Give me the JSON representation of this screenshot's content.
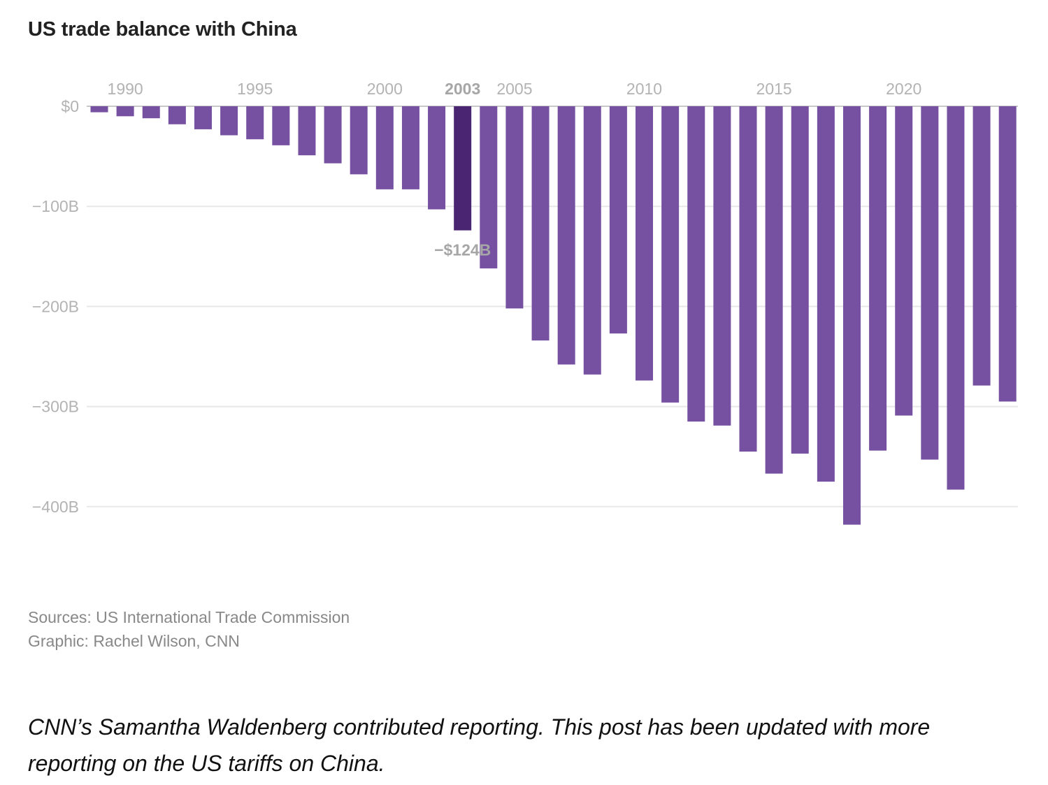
{
  "chart_data": {
    "type": "bar",
    "title": "US trade balance with China",
    "x": [
      1989,
      1990,
      1991,
      1992,
      1993,
      1994,
      1995,
      1996,
      1997,
      1998,
      1999,
      2000,
      2001,
      2002,
      2003,
      2004,
      2005,
      2006,
      2007,
      2008,
      2009,
      2010,
      2011,
      2012,
      2013,
      2014,
      2015,
      2016,
      2017,
      2018,
      2019,
      2020,
      2021,
      2022,
      2023,
      2024
    ],
    "values": [
      -6,
      -10,
      -12,
      -18,
      -23,
      -29,
      -33,
      -39,
      -49,
      -57,
      -68,
      -83,
      -83,
      -103,
      -124,
      -162,
      -202,
      -234,
      -258,
      -268,
      -227,
      -274,
      -296,
      -315,
      -319,
      -345,
      -367,
      -347,
      -375,
      -418,
      -344,
      -309,
      -353,
      -383,
      -279,
      -295
    ],
    "x_ticks": [
      "1990",
      "1995",
      "2000",
      "2003",
      "2005",
      "2010",
      "2015",
      "2020"
    ],
    "y_ticks": [
      {
        "value": 0,
        "label": "$0"
      },
      {
        "value": -100,
        "label": "−100B"
      },
      {
        "value": -200,
        "label": "−200B"
      },
      {
        "value": -300,
        "label": "−300B"
      },
      {
        "value": -400,
        "label": "−400B"
      }
    ],
    "ylim": [
      -420,
      0
    ],
    "highlight": {
      "x": 2003,
      "label": "−$124B"
    },
    "grid": true,
    "colors": {
      "bar": "#7651a1",
      "highlight": "#4a2572",
      "grid": "#e8e8e8",
      "zero_line": "#c8c8c8"
    }
  },
  "source": "Sources: US International Trade Commission",
  "graphic": "Graphic: Rachel Wilson, CNN",
  "credit": "CNN’s Samantha Waldenberg contributed reporting. This post has been updated with more reporting on the US tariffs on China."
}
